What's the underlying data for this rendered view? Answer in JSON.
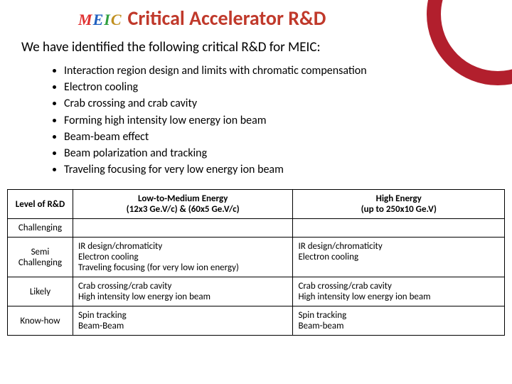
{
  "colors": {
    "title_color": "#c0392b",
    "corner_ring": "#b21f2d",
    "text_color": "#000000"
  },
  "logo": {
    "m": "M",
    "e": "E",
    "i": "I",
    "c": "C"
  },
  "title": "Critical Accelerator R&D",
  "intro": "We have identified the following critical R&D for MEIC:",
  "bullets": [
    "Interaction region design and limits with chromatic compensation",
    "Electron cooling",
    "Crab crossing and crab cavity",
    "Forming high intensity low energy ion beam",
    "Beam-beam effect",
    "Beam polarization and tracking",
    "Traveling focusing for very low energy ion beam"
  ],
  "table": {
    "head": {
      "level": "Level of R&D",
      "low_line1": "Low-to-Medium Energy",
      "low_line2": "(12x3 Ge.V/c)  &  (60x5 Ge.V/c)",
      "high_line1": "High Energy",
      "high_line2": "(up to 250x10 Ge.V)"
    },
    "rows": [
      {
        "level": "Challenging",
        "low": "",
        "high": ""
      },
      {
        "level": "Semi Challenging",
        "low": "IR design/chromaticity\nElectron cooling\nTraveling focusing (for very low ion energy)",
        "high": "IR design/chromaticity\nElectron cooling"
      },
      {
        "level": "Likely",
        "low": "Crab crossing/crab cavity\nHigh intensity low energy ion beam",
        "high": "Crab crossing/crab cavity\nHigh intensity low energy ion beam"
      },
      {
        "level": "Know-how",
        "low": "Spin tracking\nBeam-Beam",
        "high": "Spin tracking\nBeam-beam"
      }
    ]
  }
}
